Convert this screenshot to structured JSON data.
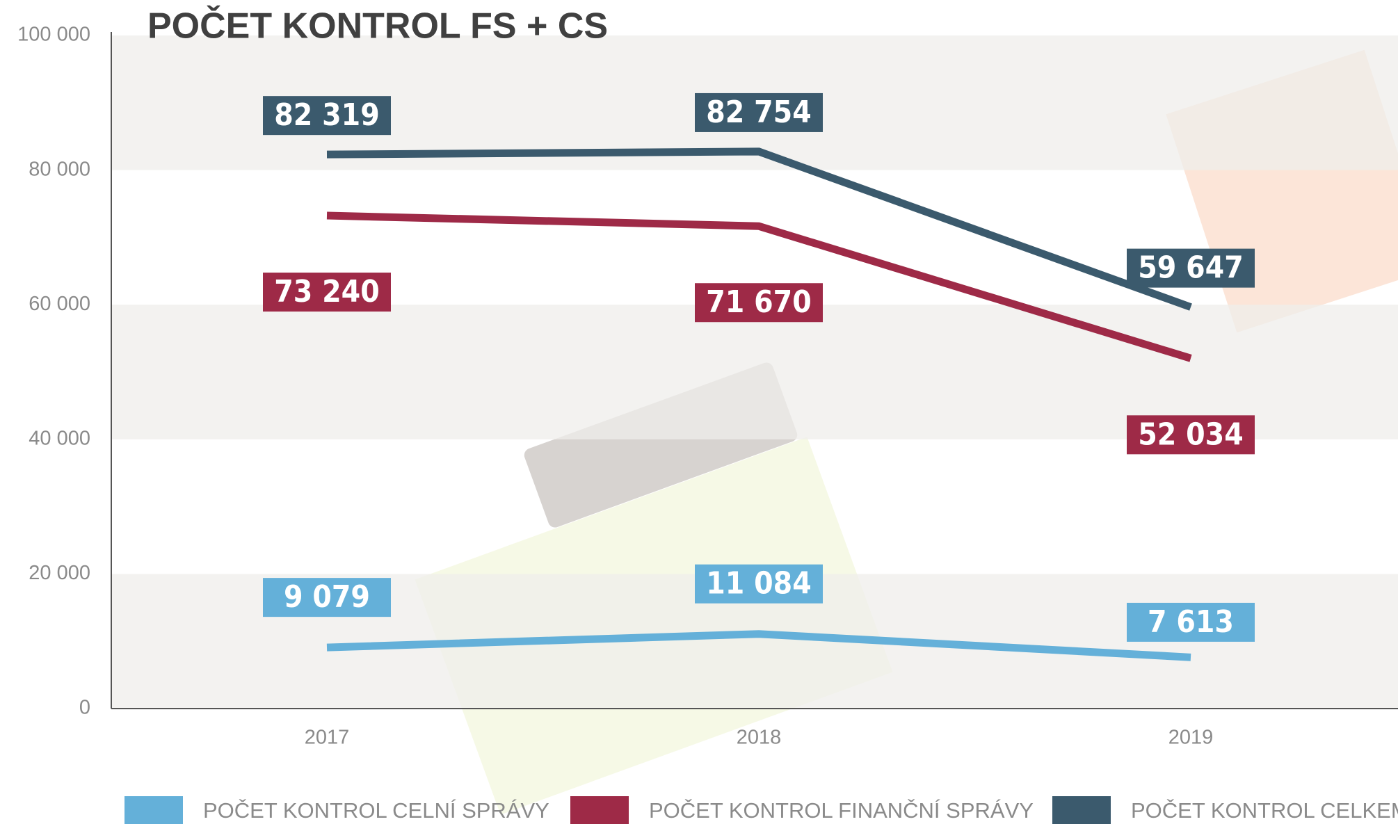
{
  "chart_data": {
    "type": "line",
    "title": "POČET KONTROL FS + CS",
    "categories": [
      "2017",
      "2018",
      "2019"
    ],
    "series": [
      {
        "name": "POČET KONTROL CELNÍ SPRÁVY",
        "color": "#64b0d9",
        "values": [
          9079,
          11084,
          7613
        ],
        "value_labels": [
          "9 079",
          "11 084",
          "7 613"
        ]
      },
      {
        "name": "POČET KONTROL FINANČNÍ SPRÁVY",
        "color": "#9e2a47",
        "values": [
          73240,
          71670,
          52034
        ],
        "value_labels": [
          "73 240",
          "71 670",
          "52 034"
        ]
      },
      {
        "name": "POČET KONTROL CELKEM",
        "color": "#3b5a6d",
        "values": [
          82319,
          82754,
          59647
        ],
        "value_labels": [
          "82 319",
          "82 754",
          "59 647"
        ]
      }
    ],
    "ylim": [
      0,
      100000
    ],
    "yticks": [
      0,
      {
        "value": 20000,
        "label": "20 000"
      },
      {
        "value": 40000,
        "label": "40 000"
      },
      {
        "value": 60000,
        "label": "60 000"
      },
      {
        "value": 80000,
        "label": "80 000"
      },
      {
        "value": 100000,
        "label": "100 000"
      }
    ],
    "grid": true,
    "legend": "bottom"
  }
}
